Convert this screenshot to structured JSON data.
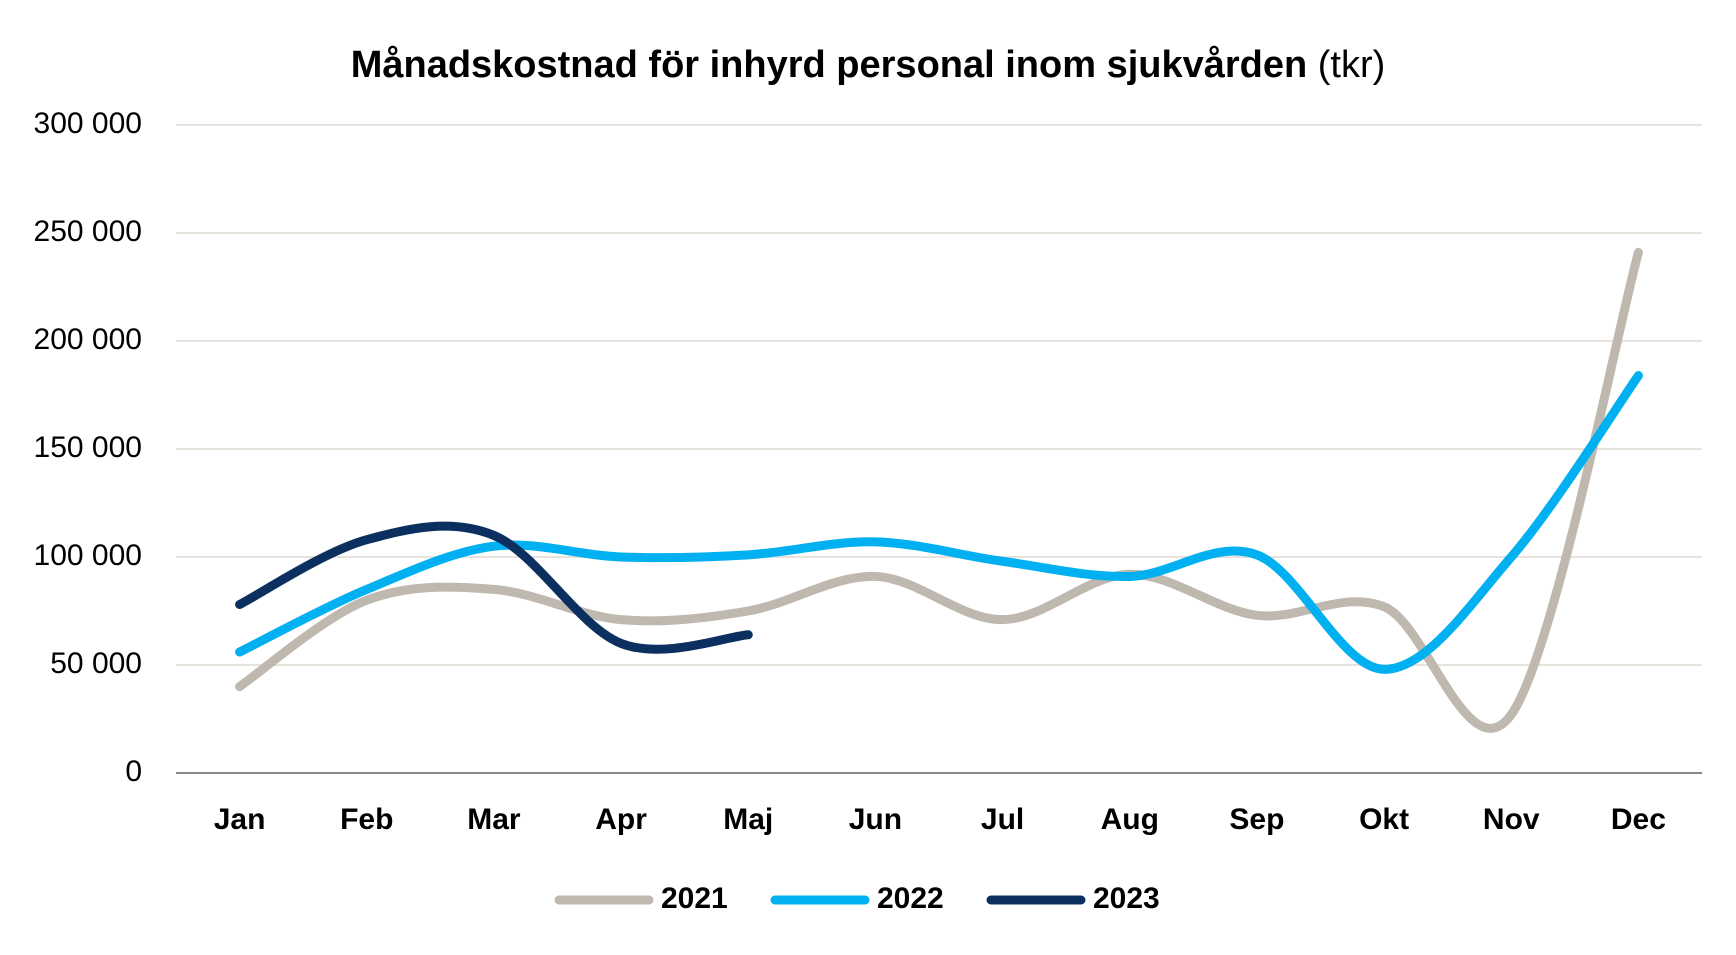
{
  "chart_data": {
    "type": "line",
    "title": "Månadskostnad för inhyrd personal inom sjukvården",
    "title_unit": "(tkr)",
    "categories": [
      "Jan",
      "Feb",
      "Mar",
      "Apr",
      "Maj",
      "Jun",
      "Jul",
      "Aug",
      "Sep",
      "Okt",
      "Nov",
      "Dec"
    ],
    "series": [
      {
        "name": "2021",
        "color": "#bfb8af",
        "values": [
          40000,
          80000,
          85000,
          71000,
          75000,
          91000,
          71000,
          92000,
          73000,
          77000,
          27000,
          241000
        ]
      },
      {
        "name": "2022",
        "color": "#00b0f0",
        "values": [
          56000,
          85000,
          105000,
          100000,
          101000,
          107000,
          98000,
          91000,
          101000,
          48000,
          100000,
          184000
        ]
      },
      {
        "name": "2023",
        "color": "#0b3060",
        "values": [
          78000,
          108000,
          110000,
          60000,
          64000,
          null,
          null,
          null,
          null,
          null,
          null,
          null
        ]
      }
    ],
    "ylim": [
      0,
      300000
    ],
    "yticks": [
      0,
      {
        "value": 50000,
        "label": "50 000"
      },
      {
        "value": 100000,
        "label": "100 000"
      },
      {
        "value": 150000,
        "label": "150 000"
      },
      {
        "value": 200000,
        "label": "200 000"
      },
      {
        "value": 250000,
        "label": "250 000"
      },
      {
        "value": 300000,
        "label": "300 000"
      }
    ],
    "grid": true,
    "legend": "bottom"
  }
}
